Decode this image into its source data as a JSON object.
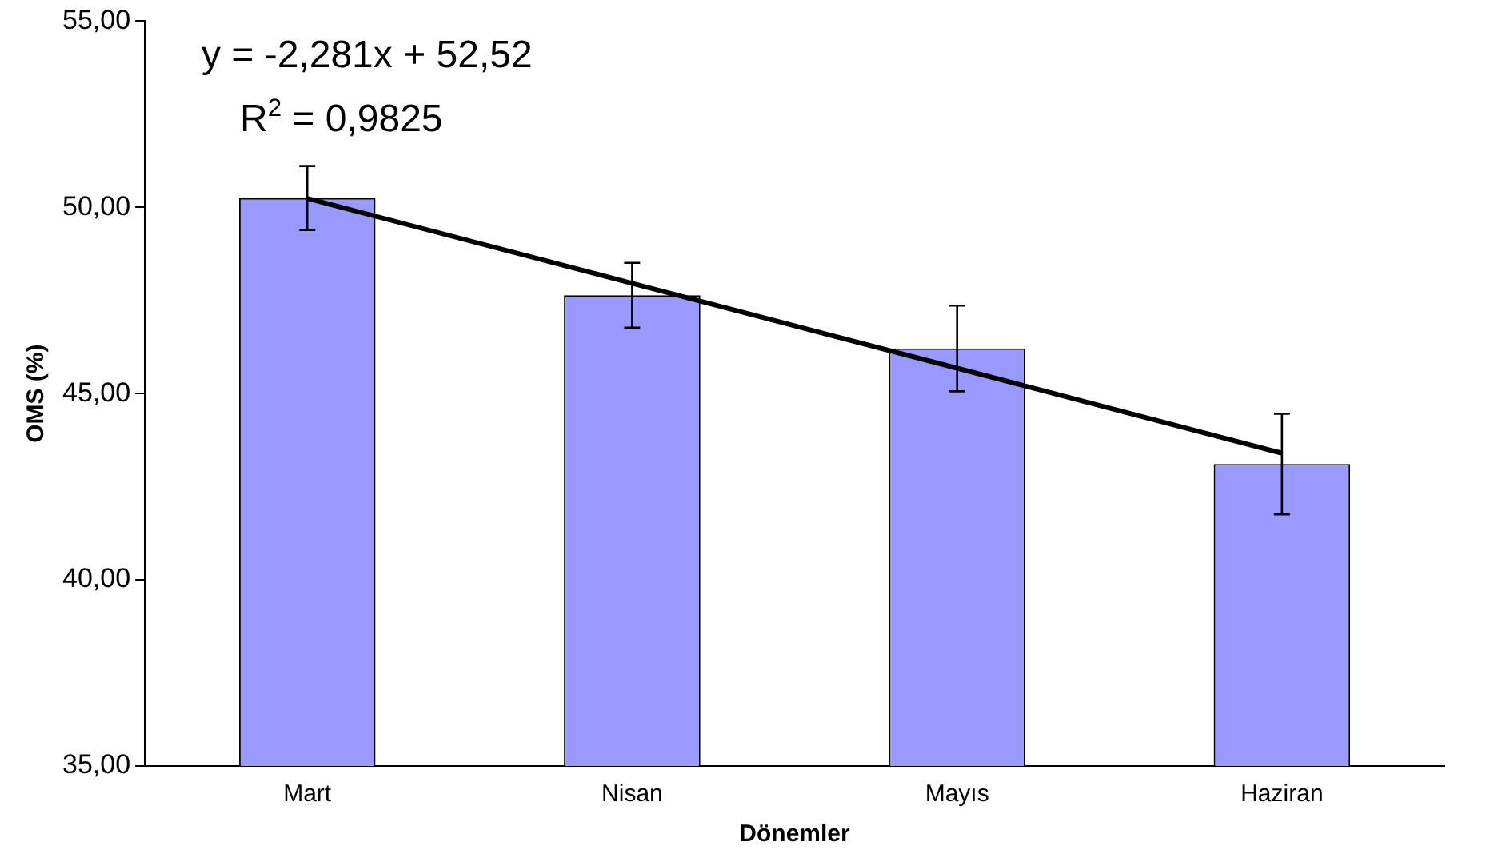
{
  "chart_data": {
    "type": "bar",
    "xlabel": "Dönemler",
    "ylabel": "OMS (%)",
    "categories": [
      "Mart",
      "Nisan",
      "Mayıs",
      "Haziran"
    ],
    "series": [
      {
        "color": "#9999ff",
        "values": [
          50.25,
          47.64,
          46.21,
          43.11
        ],
        "errors": [
          0.86,
          0.87,
          1.15,
          1.35
        ]
      },
      {
        "type": "line",
        "color": "#000000",
        "values": [
          50.24,
          47.96,
          45.68,
          43.4
        ]
      }
    ],
    "marker": "none",
    "line_style": "solid",
    "ylim": [
      35,
      55
    ],
    "yticks": [
      {
        "value": 35,
        "label": "35,00"
      },
      {
        "value": 40,
        "label": "40,00"
      },
      {
        "value": 45,
        "label": "45,00"
      },
      {
        "value": 50,
        "label": "50,00"
      },
      {
        "value": 55,
        "label": "55,00"
      }
    ],
    "grid": false,
    "legend": false,
    "annotations": [
      "y = -2,281x + 52,52",
      "R$^{2}$ = 0,9825"
    ]
  }
}
